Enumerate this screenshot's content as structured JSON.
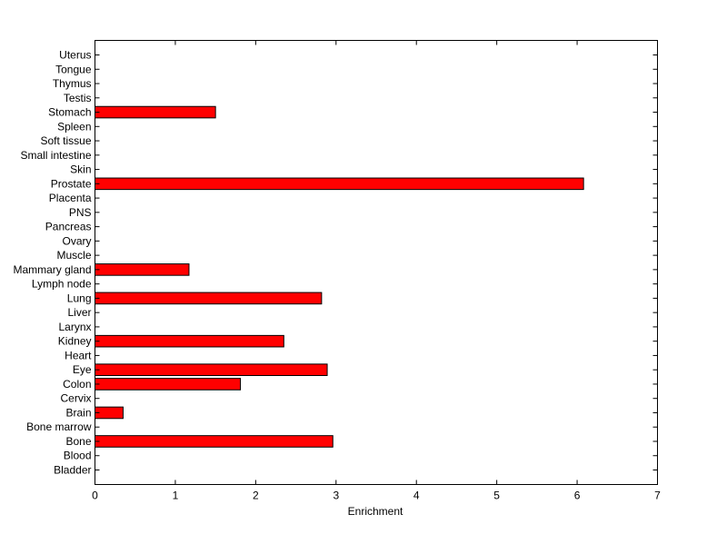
{
  "chart_data": {
    "type": "bar",
    "orientation": "horizontal",
    "title": "",
    "xlabel": "Enrichment",
    "ylabel": "",
    "xlim": [
      0,
      7
    ],
    "xticks": [
      "0",
      "1",
      "2",
      "3",
      "4",
      "5",
      "6",
      "7"
    ],
    "grid": false,
    "bar_color": "#ff0000",
    "categories": [
      "Bladder",
      "Blood",
      "Bone",
      "Bone marrow",
      "Brain",
      "Cervix",
      "Colon",
      "Eye",
      "Heart",
      "Kidney",
      "Larynx",
      "Liver",
      "Lung",
      "Lymph node",
      "Mammary gland",
      "Muscle",
      "Ovary",
      "Pancreas",
      "PNS",
      "Placenta",
      "Prostate",
      "Skin",
      "Small intestine",
      "Soft tissue",
      "Spleen",
      "Stomach",
      "Testis",
      "Thymus",
      "Tongue",
      "Uterus"
    ],
    "values": [
      0,
      0,
      2.96,
      0,
      0.35,
      0,
      1.81,
      2.89,
      0,
      2.35,
      0,
      0,
      2.82,
      0,
      1.17,
      0,
      0,
      0,
      0,
      0,
      6.08,
      0,
      0,
      0,
      0,
      1.5,
      0,
      0,
      0,
      0
    ]
  }
}
